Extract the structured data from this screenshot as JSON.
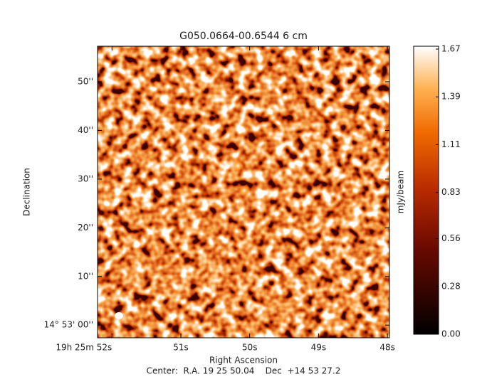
{
  "chart_data": {
    "type": "heatmap",
    "title": "G050.0664-00.6544 6 cm",
    "x_label": "Right Ascension",
    "y_label": "Declination",
    "footer": "Center:  R.A. 19 25 50.04    Dec  +14 53 27.2",
    "xlim": [
      52.21,
      47.97
    ],
    "xticks": [
      {
        "value": 52,
        "label": "19h 25m 52s"
      },
      {
        "value": 51,
        "label": "51s"
      },
      {
        "value": 50,
        "label": "50s"
      },
      {
        "value": 49,
        "label": "49s"
      },
      {
        "value": 48,
        "label": "48s"
      }
    ],
    "ylim": [
      -2.6,
      57.3
    ],
    "yticks": [
      {
        "value": 0,
        "label": "14° 53' 00''"
      },
      {
        "value": 10,
        "label": "10''"
      },
      {
        "value": 20,
        "label": "20''"
      },
      {
        "value": 30,
        "label": "30''"
      },
      {
        "value": 40,
        "label": "40''"
      },
      {
        "value": 50,
        "label": "50''"
      }
    ],
    "colorbar": {
      "label": "mJy/beam",
      "lim": [
        0,
        1.67
      ],
      "ticks": [
        {
          "value": 0,
          "label": "0.00"
        },
        0.28,
        0.56,
        0.83,
        1.11,
        1.39,
        1.67
      ]
    }
  }
}
